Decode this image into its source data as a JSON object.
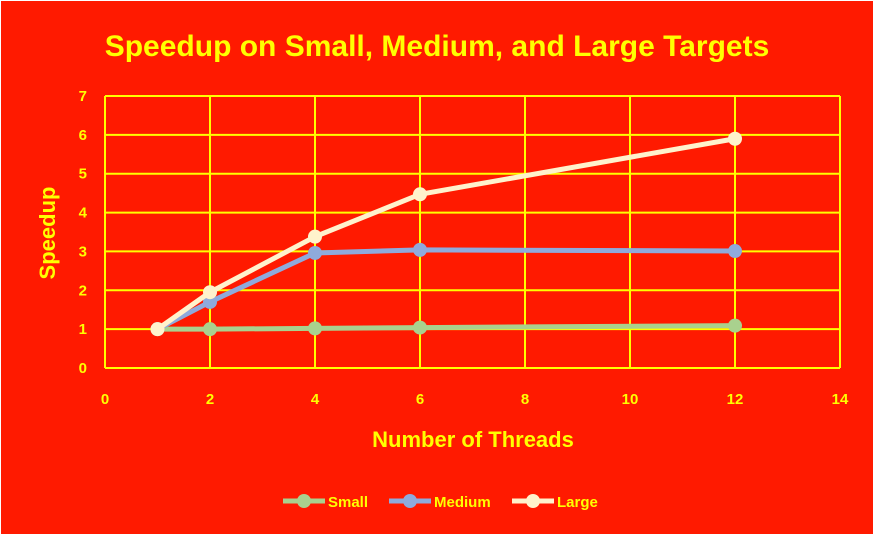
{
  "chart_data": {
    "type": "line",
    "title": "Speedup on Small, Medium, and Large Targets",
    "xlabel": "Number of Threads",
    "ylabel": "Speedup",
    "xlim": [
      0,
      14
    ],
    "ylim": [
      0,
      7
    ],
    "xticks": [
      "0",
      "2",
      "4",
      "6",
      "8",
      "10",
      "12",
      "14"
    ],
    "yticks": [
      "0",
      "1",
      "2",
      "3",
      "4",
      "5",
      "6",
      "7"
    ],
    "grid": true,
    "legend_position": "bottom",
    "series": [
      {
        "name": "Small",
        "color": "#a9d18e",
        "x": [
          1,
          2,
          4,
          6,
          12
        ],
        "y": [
          1.0,
          1.0,
          1.02,
          1.04,
          1.09
        ]
      },
      {
        "name": "Medium",
        "color": "#8faadc",
        "x": [
          1,
          2,
          4,
          6,
          12
        ],
        "y": [
          1.0,
          1.7,
          2.96,
          3.04,
          3.01
        ]
      },
      {
        "name": "Large",
        "color": "#fff2cc",
        "x": [
          1,
          2,
          4,
          6,
          12
        ],
        "y": [
          1.0,
          1.95,
          3.38,
          4.47,
          5.9
        ]
      }
    ]
  },
  "colors": {
    "background": "#ff1a00",
    "text": "#ffff00",
    "grid": "#ffff00"
  }
}
